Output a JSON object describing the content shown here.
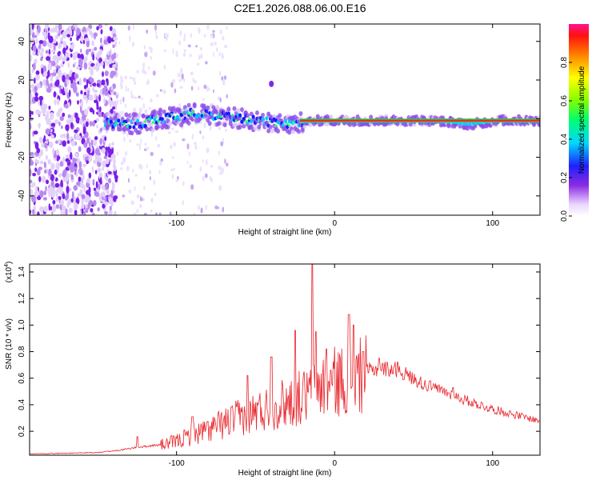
{
  "title": "C2E1.2026.088.06.00.E16",
  "chart_data": [
    {
      "type": "heatmap",
      "name": "spectrogram",
      "xlabel": "Height of straight line (km)",
      "ylabel": "Frequency (Hz)",
      "xlim": [
        -193,
        130
      ],
      "ylim": [
        -50,
        49
      ],
      "xticks": [
        "-100",
        "0",
        "100"
      ],
      "yticks": [
        "-40",
        "-20",
        "0",
        "20",
        "40"
      ],
      "colorbar": {
        "label": "Normalized spectral amplitude",
        "ticks": [
          "0.0",
          "0.2",
          "0.4",
          "0.6",
          "0.8"
        ],
        "range": [
          0,
          1
        ]
      },
      "ridge": {
        "description_note": "main signal ridge near 0 Hz",
        "points": [
          [
            -145,
            -2
          ],
          [
            -130,
            -3
          ],
          [
            -120,
            -2
          ],
          [
            -110,
            0
          ],
          [
            -100,
            1
          ],
          [
            -90,
            3
          ],
          [
            -80,
            2
          ],
          [
            -70,
            1
          ],
          [
            -60,
            0
          ],
          [
            -50,
            -1
          ],
          [
            -40,
            -2
          ],
          [
            -30,
            -3
          ],
          [
            -20,
            -2
          ],
          [
            -10,
            -1
          ],
          [
            0,
            -1
          ],
          [
            10,
            -1
          ],
          [
            20,
            -1
          ],
          [
            40,
            -1
          ],
          [
            60,
            -1
          ],
          [
            75,
            -2
          ],
          [
            85,
            -3
          ],
          [
            95,
            -2
          ],
          [
            105,
            -1
          ],
          [
            130,
            -1
          ]
        ]
      }
    },
    {
      "type": "line",
      "name": "snr",
      "xlabel": "Height of straight line (km)",
      "ylabel": "SNR (10 * v/v)",
      "exponent_label": "(x10",
      "exponent_power": "4",
      "exponent_close": ")",
      "xlim": [
        -193,
        130
      ],
      "ylim": [
        0.02,
        1.46
      ],
      "xticks": [
        "-100",
        "0",
        "100"
      ],
      "yticks": [
        "0.2",
        "0.4",
        "0.6",
        "0.8",
        "1.0",
        "1.2",
        "1.4"
      ],
      "color": "#e8252b",
      "envelope": [
        [
          -193,
          0.03
        ],
        [
          -150,
          0.04
        ],
        [
          -135,
          0.06
        ],
        [
          -125,
          0.08
        ],
        [
          -110,
          0.1
        ],
        [
          -100,
          0.13
        ],
        [
          -90,
          0.18
        ],
        [
          -80,
          0.22
        ],
        [
          -70,
          0.27
        ],
        [
          -60,
          0.32
        ],
        [
          -50,
          0.36
        ],
        [
          -40,
          0.4
        ],
        [
          -30,
          0.44
        ],
        [
          -20,
          0.48
        ],
        [
          -15,
          0.5
        ],
        [
          -10,
          0.56
        ],
        [
          -5,
          0.58
        ],
        [
          0,
          0.6
        ],
        [
          10,
          0.63
        ],
        [
          20,
          0.66
        ],
        [
          30,
          0.68
        ],
        [
          40,
          0.67
        ],
        [
          50,
          0.6
        ],
        [
          60,
          0.54
        ],
        [
          70,
          0.5
        ],
        [
          80,
          0.45
        ],
        [
          90,
          0.41
        ],
        [
          100,
          0.37
        ],
        [
          110,
          0.34
        ],
        [
          120,
          0.31
        ],
        [
          130,
          0.28
        ]
      ],
      "peaks": [
        [
          -125,
          0.16
        ],
        [
          -90,
          0.31
        ],
        [
          -55,
          0.62
        ],
        [
          -40,
          0.76
        ],
        [
          -25,
          0.96
        ],
        [
          -14,
          1.46
        ],
        [
          -12,
          0.95
        ],
        [
          -5,
          0.82
        ],
        [
          9,
          1.08
        ],
        [
          12,
          1.0
        ],
        [
          18,
          0.8
        ],
        [
          28,
          0.75
        ],
        [
          40,
          0.72
        ],
        [
          60,
          0.58
        ],
        [
          75,
          0.53
        ]
      ]
    }
  ]
}
